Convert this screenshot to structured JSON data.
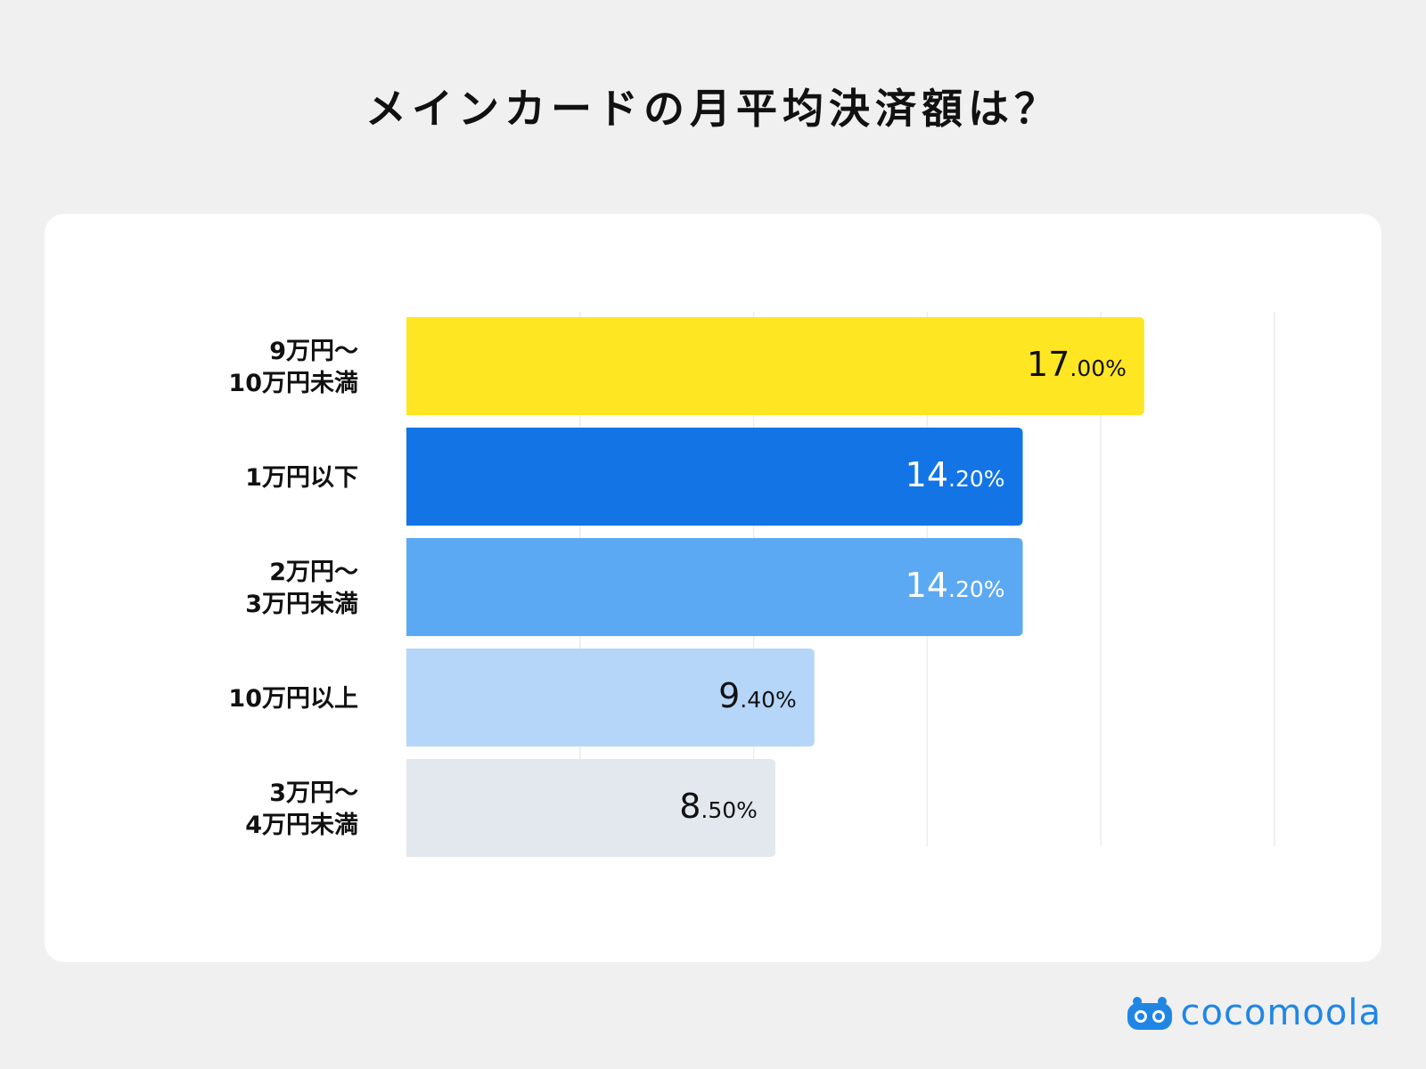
{
  "title": "メインカードの月平均決済額は？",
  "brand": {
    "name": "cocomoola",
    "icon": "cocomoola-logo-icon",
    "color": "#1f86e6"
  },
  "colors": {
    "background": "#f0f0f0",
    "card": "#ffffff",
    "gridline": "#ececec"
  },
  "chart_data": {
    "type": "bar",
    "orientation": "horizontal",
    "categories": [
      "9万円〜\n10万円未満",
      "1万円以下",
      "2万円〜\n3万円未満",
      "10万円以上",
      "3万円〜\n4万円未満"
    ],
    "values": [
      17.0,
      14.2,
      14.2,
      9.4,
      8.5
    ],
    "value_labels": [
      {
        "int": "17",
        "dec": ".00%"
      },
      {
        "int": "14",
        "dec": ".20%"
      },
      {
        "int": "14",
        "dec": ".20%"
      },
      {
        "int": "9",
        "dec": ".40%"
      },
      {
        "int": "8",
        "dec": ".50%"
      }
    ],
    "bar_colors": [
      "#ffe623",
      "#1374e6",
      "#5ca9f3",
      "#b5d6f8",
      "#e3e8ee"
    ],
    "label_colors": [
      "#111111",
      "#ffffff",
      "#ffffff",
      "#111111",
      "#111111"
    ],
    "xlim": [
      0,
      20
    ],
    "grid": true,
    "title": "",
    "xlabel": "",
    "ylabel": ""
  }
}
